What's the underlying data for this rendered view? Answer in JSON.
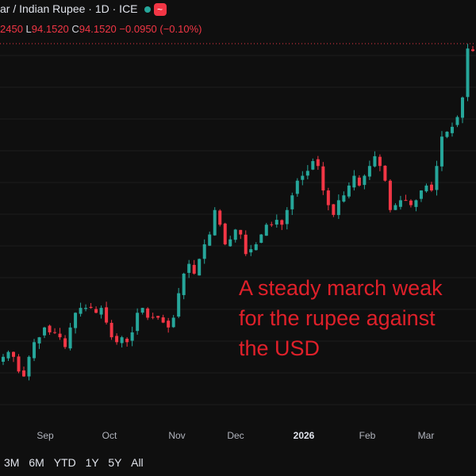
{
  "header": {
    "title": "ar / Indian Rupee · 1D · ICE",
    "status_color": "#26a69a",
    "wave_icon": "~"
  },
  "ohlc": {
    "h_value": "2450",
    "l_label": "L",
    "l_value": "94.1520",
    "c_label": "C",
    "c_value": "94.1520",
    "change": "−0.0950 (−0.10%)"
  },
  "annotation": "A steady march weak\nfor the rupee against\nthe USD",
  "range_buttons": [
    "3M",
    "6M",
    "YTD",
    "1Y",
    "5Y",
    "All"
  ],
  "colors": {
    "up": "#26a69a",
    "down": "#f23645",
    "background": "#0f0f0f",
    "annotation": "#e0202a"
  },
  "chart_data": {
    "type": "candlestick",
    "x_tick_labels": [
      "Sep",
      "Oct",
      "Nov",
      "Dec",
      "2026",
      "Feb",
      "Mar"
    ],
    "y_range_approx": [
      86.6,
      94.3
    ],
    "last_close": 94.152,
    "series_close_approx": [
      87.9,
      88.0,
      87.9,
      87.6,
      87.5,
      87.9,
      88.2,
      88.3,
      88.5,
      88.4,
      88.4,
      88.3,
      88.1,
      88.5,
      88.8,
      88.9,
      88.9,
      88.9,
      88.8,
      88.9,
      88.6,
      88.3,
      88.2,
      88.3,
      88.2,
      88.4,
      88.8,
      88.9,
      88.7,
      88.7,
      88.7,
      88.6,
      88.5,
      88.7,
      89.2,
      89.6,
      89.8,
      89.6,
      89.9,
      90.2,
      90.4,
      90.9,
      90.6,
      90.2,
      90.3,
      90.5,
      90.4,
      90.0,
      90.1,
      90.2,
      90.4,
      90.6,
      90.6,
      90.7,
      90.6,
      90.9,
      91.2,
      91.5,
      91.6,
      91.7,
      91.9,
      91.8,
      91.3,
      91.0,
      90.8,
      91.1,
      91.2,
      91.4,
      91.6,
      91.4,
      91.6,
      91.8,
      92.0,
      91.8,
      91.5,
      90.9,
      91.0,
      91.1,
      91.1,
      91.0,
      91.1,
      91.3,
      91.4,
      91.3,
      91.8,
      92.4,
      92.5,
      92.6,
      92.8,
      93.2,
      94.2,
      94.15
    ],
    "grid": true
  }
}
